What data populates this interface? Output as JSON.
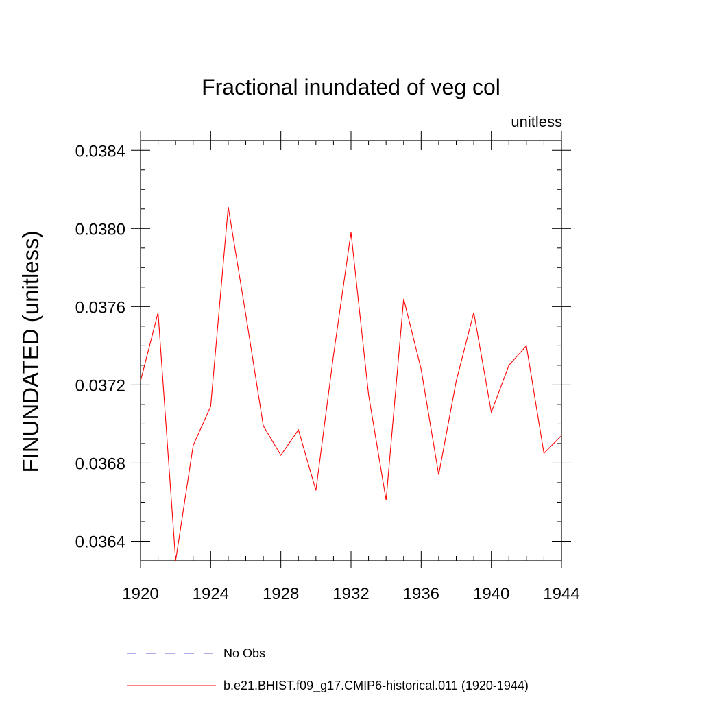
{
  "chart_data": {
    "type": "line",
    "title": "Fractional inundated of veg col",
    "units_label": "unitless",
    "xlabel": "",
    "ylabel": "FINUNDATED  (unitless)",
    "xlim": [
      1920,
      1944
    ],
    "ylim": [
      0.0363,
      0.03845
    ],
    "x_ticks": [
      "1920",
      "1924",
      "1928",
      "1932",
      "1936",
      "1940",
      "1944"
    ],
    "y_ticks": [
      "0.0364",
      "0.0368",
      "0.0372",
      "0.0376",
      "0.0380",
      "0.0384"
    ],
    "grid": false,
    "series": [
      {
        "name": "b.e21.BHIST.f09_g17.CMIP6-historical.011 (1920-1944)",
        "color": "#ff0000",
        "style": "solid",
        "x": [
          1920,
          1921,
          1922,
          1923,
          1924,
          1925,
          1926,
          1927,
          1928,
          1929,
          1930,
          1931,
          1932,
          1933,
          1934,
          1935,
          1936,
          1937,
          1938,
          1939,
          1940,
          1941,
          1942,
          1943,
          1944
        ],
        "values": [
          0.03722,
          0.03757,
          0.0363,
          0.03689,
          0.03709,
          0.03811,
          0.03756,
          0.03699,
          0.03684,
          0.03697,
          0.03666,
          0.03735,
          0.03798,
          0.03715,
          0.03661,
          0.03764,
          0.03728,
          0.03674,
          0.03722,
          0.03757,
          0.03706,
          0.0373,
          0.0374,
          0.03685,
          0.03694
        ]
      }
    ],
    "legend": {
      "placement": "bottom",
      "entries": [
        {
          "label": "No Obs",
          "color": "#5b5bd6",
          "style": "dashed"
        },
        {
          "label": "b.e21.BHIST.f09_g17.CMIP6-historical.011 (1920-1944)",
          "color": "#ff0000",
          "style": "solid"
        }
      ]
    }
  }
}
